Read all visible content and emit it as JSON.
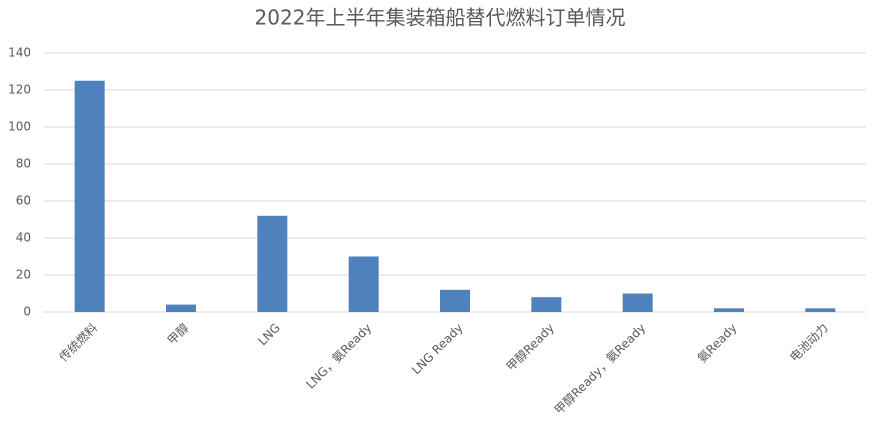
{
  "chart_data": {
    "type": "bar",
    "title": "2022年上半年集装箱船替代燃料订单情况",
    "categories": [
      "传统燃料",
      "甲醇",
      "LNG",
      "LNG，氨Ready",
      "LNG Ready",
      "甲醇Ready",
      "甲醇Ready，氨Ready",
      "氨Ready",
      "电池动力"
    ],
    "values": [
      125,
      4,
      52,
      30,
      12,
      8,
      10,
      2,
      2
    ],
    "color": "#4f81bd",
    "ylim": [
      0,
      140
    ],
    "yticks": [
      0,
      20,
      40,
      60,
      80,
      100,
      120,
      140
    ],
    "grid": true
  }
}
